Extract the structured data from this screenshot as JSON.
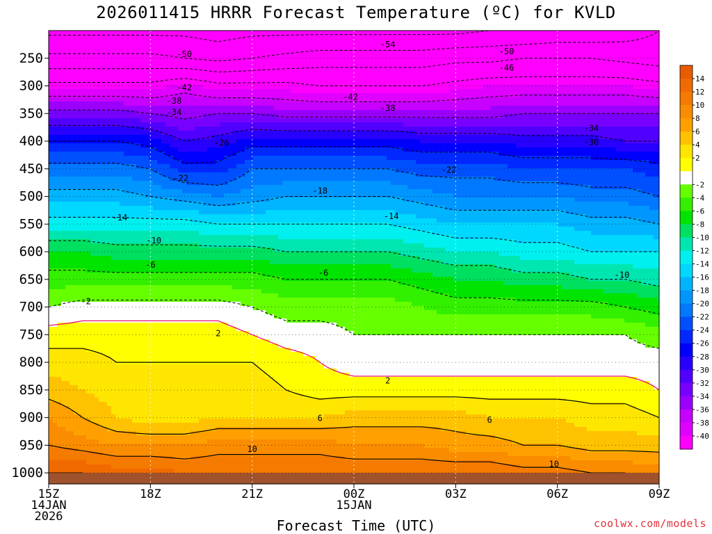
{
  "title": "2026011415 HRRR Forecast Temperature (ºC) for KVLD",
  "xlabel": "Forecast Time (UTC)",
  "credit": "coolwx.com/models",
  "chart_data": {
    "type": "heatmap",
    "subtype": "time-height cross section",
    "title": "2026011415 HRRR Forecast Temperature (ºC) for KVLD",
    "xlabel": "Forecast Time (UTC)",
    "ylabel": "",
    "x": [
      0,
      1,
      2,
      3,
      4,
      5,
      6,
      7,
      8,
      9,
      10,
      11,
      12,
      13,
      14,
      15,
      16,
      17,
      18
    ],
    "x_ticks": [
      {
        "x": 0,
        "lines": [
          "15Z",
          "14JAN",
          "2026"
        ]
      },
      {
        "x": 3,
        "lines": [
          "18Z"
        ]
      },
      {
        "x": 6,
        "lines": [
          "21Z"
        ]
      },
      {
        "x": 9,
        "lines": [
          "00Z",
          "15JAN"
        ]
      },
      {
        "x": 12,
        "lines": [
          "03Z"
        ]
      },
      {
        "x": 15,
        "lines": [
          "06Z"
        ]
      },
      {
        "x": 18,
        "lines": [
          "09Z"
        ]
      }
    ],
    "y_ticks": [
      250,
      300,
      350,
      400,
      450,
      500,
      550,
      600,
      650,
      700,
      750,
      800,
      850,
      900,
      950,
      1000
    ],
    "ylim": [
      200,
      1020
    ],
    "levels": [
      1000,
      950,
      900,
      850,
      800,
      750,
      700,
      650,
      600,
      550,
      500,
      450,
      400,
      350,
      300,
      250,
      200
    ],
    "temperature": [
      [
        14,
        14,
        13,
        13,
        12,
        12,
        12,
        12,
        12,
        12,
        12,
        12,
        12,
        12,
        11,
        11,
        10,
        10,
        9
      ],
      [
        10,
        9,
        8,
        8,
        8,
        9,
        9,
        9,
        9,
        8,
        8,
        8,
        7,
        7,
        6,
        6,
        5,
        5,
        5
      ],
      [
        8,
        6,
        4,
        3,
        3,
        4,
        4,
        4,
        4,
        5,
        5,
        5,
        5,
        4,
        4,
        4,
        3,
        3,
        2
      ],
      [
        5,
        4,
        3,
        3,
        3,
        3,
        3,
        2,
        1,
        1,
        1,
        1,
        1,
        1,
        1,
        1,
        1,
        1,
        0
      ],
      [
        3,
        3,
        2,
        2,
        2,
        2,
        2,
        1,
        0,
        -1,
        -1,
        -1,
        -1,
        -1,
        -1,
        -1,
        -1,
        -1,
        -1
      ],
      [
        1,
        1,
        1,
        1,
        1,
        1,
        0,
        -1,
        -1,
        -2,
        -2,
        -2,
        -2,
        -2,
        -2,
        -2,
        -2,
        -2,
        -3
      ],
      [
        -2,
        -1,
        -1,
        -1,
        -1,
        -1,
        -2,
        -3,
        -3,
        -3,
        -3,
        -4,
        -5,
        -5,
        -5,
        -5,
        -5,
        -6,
        -7
      ],
      [
        -5,
        -5,
        -5,
        -5,
        -5,
        -5,
        -5,
        -6,
        -6,
        -6,
        -6,
        -7,
        -8,
        -8,
        -9,
        -9,
        -10,
        -10,
        -11
      ],
      [
        -8,
        -8,
        -9,
        -9,
        -9,
        -9,
        -9,
        -10,
        -10,
        -10,
        -10,
        -11,
        -12,
        -12,
        -13,
        -13,
        -14,
        -14,
        -14
      ],
      [
        -13,
        -13,
        -13,
        -13,
        -13,
        -14,
        -14,
        -14,
        -14,
        -14,
        -14,
        -15,
        -16,
        -16,
        -16,
        -16,
        -17,
        -17,
        -18
      ],
      [
        -17,
        -17,
        -17,
        -18,
        -19,
        -20,
        -19,
        -18,
        -18,
        -18,
        -18,
        -19,
        -20,
        -20,
        -20,
        -20,
        -21,
        -21,
        -22
      ],
      [
        -21,
        -21,
        -21,
        -22,
        -25,
        -25,
        -22,
        -22,
        -22,
        -22,
        -22,
        -23,
        -23,
        -23,
        -24,
        -24,
        -24,
        -24,
        -25
      ],
      [
        -26,
        -26,
        -26,
        -27,
        -30,
        -29,
        -27,
        -27,
        -27,
        -27,
        -27,
        -28,
        -28,
        -28,
        -29,
        -29,
        -29,
        -30,
        -30
      ],
      [
        -33,
        -33,
        -33,
        -34,
        -35,
        -34,
        -34,
        -35,
        -35,
        -35,
        -35,
        -35,
        -35,
        -35,
        -34,
        -34,
        -34,
        -34,
        -34
      ],
      [
        -41,
        -41,
        -41,
        -41,
        -39,
        -41,
        -41,
        -41,
        -42,
        -42,
        -42,
        -42,
        -41,
        -40,
        -40,
        -40,
        -40,
        -40,
        -41
      ],
      [
        -49,
        -49,
        -49,
        -49,
        -50,
        -51,
        -50,
        -49,
        -48,
        -48,
        -48,
        -48,
        -47,
        -47,
        -46,
        -46,
        -46,
        -47,
        -48
      ],
      [
        -55,
        -55,
        -55,
        -55,
        -55,
        -56,
        -55,
        -55,
        -55,
        -55,
        -55,
        -55,
        -55,
        -54,
        -54,
        -53,
        -53,
        -52,
        -50
      ]
    ],
    "contour_labels": [
      {
        "text": "-54",
        "x": 10.0,
        "p": 225
      },
      {
        "text": "-50",
        "x": 4.0,
        "p": 243
      },
      {
        "text": "-50",
        "x": 13.5,
        "p": 238
      },
      {
        "text": "-46",
        "x": 13.5,
        "p": 267
      },
      {
        "text": "-42",
        "x": 4.0,
        "p": 303
      },
      {
        "text": "-42",
        "x": 8.9,
        "p": 320
      },
      {
        "text": "-38",
        "x": 3.7,
        "p": 327
      },
      {
        "text": "-38",
        "x": 10.0,
        "p": 340
      },
      {
        "text": "-34",
        "x": 3.7,
        "p": 348
      },
      {
        "text": "-34",
        "x": 16.0,
        "p": 377
      },
      {
        "text": "-30",
        "x": 16.0,
        "p": 402
      },
      {
        "text": "-26",
        "x": 5.1,
        "p": 403
      },
      {
        "text": "-22",
        "x": 3.9,
        "p": 467
      },
      {
        "text": "-22",
        "x": 11.8,
        "p": 452
      },
      {
        "text": "-18",
        "x": 8.0,
        "p": 490
      },
      {
        "text": "-14",
        "x": 2.1,
        "p": 538
      },
      {
        "text": "-14",
        "x": 10.1,
        "p": 536
      },
      {
        "text": "-10",
        "x": 3.1,
        "p": 580
      },
      {
        "text": "-10",
        "x": 16.9,
        "p": 642
      },
      {
        "text": "-6",
        "x": 3.0,
        "p": 624
      },
      {
        "text": "-6",
        "x": 8.1,
        "p": 638
      },
      {
        "text": "-2",
        "x": 1.1,
        "p": 690
      },
      {
        "text": "2",
        "x": 5.0,
        "p": 748
      },
      {
        "text": "2",
        "x": 10.0,
        "p": 833
      },
      {
        "text": "6",
        "x": 8.0,
        "p": 901
      },
      {
        "text": "6",
        "x": 13.0,
        "p": 904
      },
      {
        "text": "10",
        "x": 6.0,
        "p": 957
      },
      {
        "text": "10",
        "x": 14.9,
        "p": 984
      }
    ],
    "colorbar": {
      "ticks": [
        14,
        12,
        10,
        8,
        6,
        4,
        2,
        -2,
        -4,
        -6,
        -8,
        -10,
        -12,
        -14,
        -16,
        -18,
        -20,
        -22,
        -24,
        -26,
        -28,
        -30,
        -32,
        -34,
        -36,
        -38,
        -40
      ],
      "bins": [
        {
          "lo": 14,
          "hi": 16,
          "color": "#e85c00"
        },
        {
          "lo": 12,
          "hi": 14,
          "color": "#f06a00"
        },
        {
          "lo": 10,
          "hi": 12,
          "color": "#f57a00"
        },
        {
          "lo": 8,
          "hi": 10,
          "color": "#fa8c00"
        },
        {
          "lo": 6,
          "hi": 8,
          "color": "#ffa000"
        },
        {
          "lo": 4,
          "hi": 6,
          "color": "#ffc200"
        },
        {
          "lo": 2,
          "hi": 4,
          "color": "#ffe600"
        },
        {
          "lo": 0,
          "hi": 2,
          "color": "#ffff00"
        },
        {
          "lo": -2,
          "hi": 0,
          "color": "#ffffff"
        },
        {
          "lo": -4,
          "hi": -2,
          "color": "#66ff00"
        },
        {
          "lo": -6,
          "hi": -4,
          "color": "#33f000"
        },
        {
          "lo": -8,
          "hi": -6,
          "color": "#00e400"
        },
        {
          "lo": -10,
          "hi": -8,
          "color": "#00e060"
        },
        {
          "lo": -12,
          "hi": -10,
          "color": "#00e6b0"
        },
        {
          "lo": -14,
          "hi": -12,
          "color": "#00f0f0"
        },
        {
          "lo": -16,
          "hi": -14,
          "color": "#00d8ff"
        },
        {
          "lo": -18,
          "hi": -16,
          "color": "#00b4ff"
        },
        {
          "lo": -20,
          "hi": -18,
          "color": "#0096ff"
        },
        {
          "lo": -22,
          "hi": -20,
          "color": "#0078ff"
        },
        {
          "lo": -24,
          "hi": -22,
          "color": "#0050ff"
        },
        {
          "lo": -26,
          "hi": -24,
          "color": "#0028ff"
        },
        {
          "lo": -28,
          "hi": -26,
          "color": "#0000ff"
        },
        {
          "lo": -30,
          "hi": -28,
          "color": "#2800ff"
        },
        {
          "lo": -32,
          "hi": -30,
          "color": "#5000ff"
        },
        {
          "lo": -34,
          "hi": -32,
          "color": "#7800ff"
        },
        {
          "lo": -36,
          "hi": -34,
          "color": "#9b00ff"
        },
        {
          "lo": -38,
          "hi": -36,
          "color": "#c800ff"
        },
        {
          "lo": -40,
          "hi": -38,
          "color": "#e000ff"
        },
        {
          "lo": -42,
          "hi": -40,
          "color": "#ff00ff"
        }
      ]
    },
    "ground_color": "#a0522d",
    "freezing_line_color": "#e8106a",
    "background_color": "#ff00ff"
  }
}
